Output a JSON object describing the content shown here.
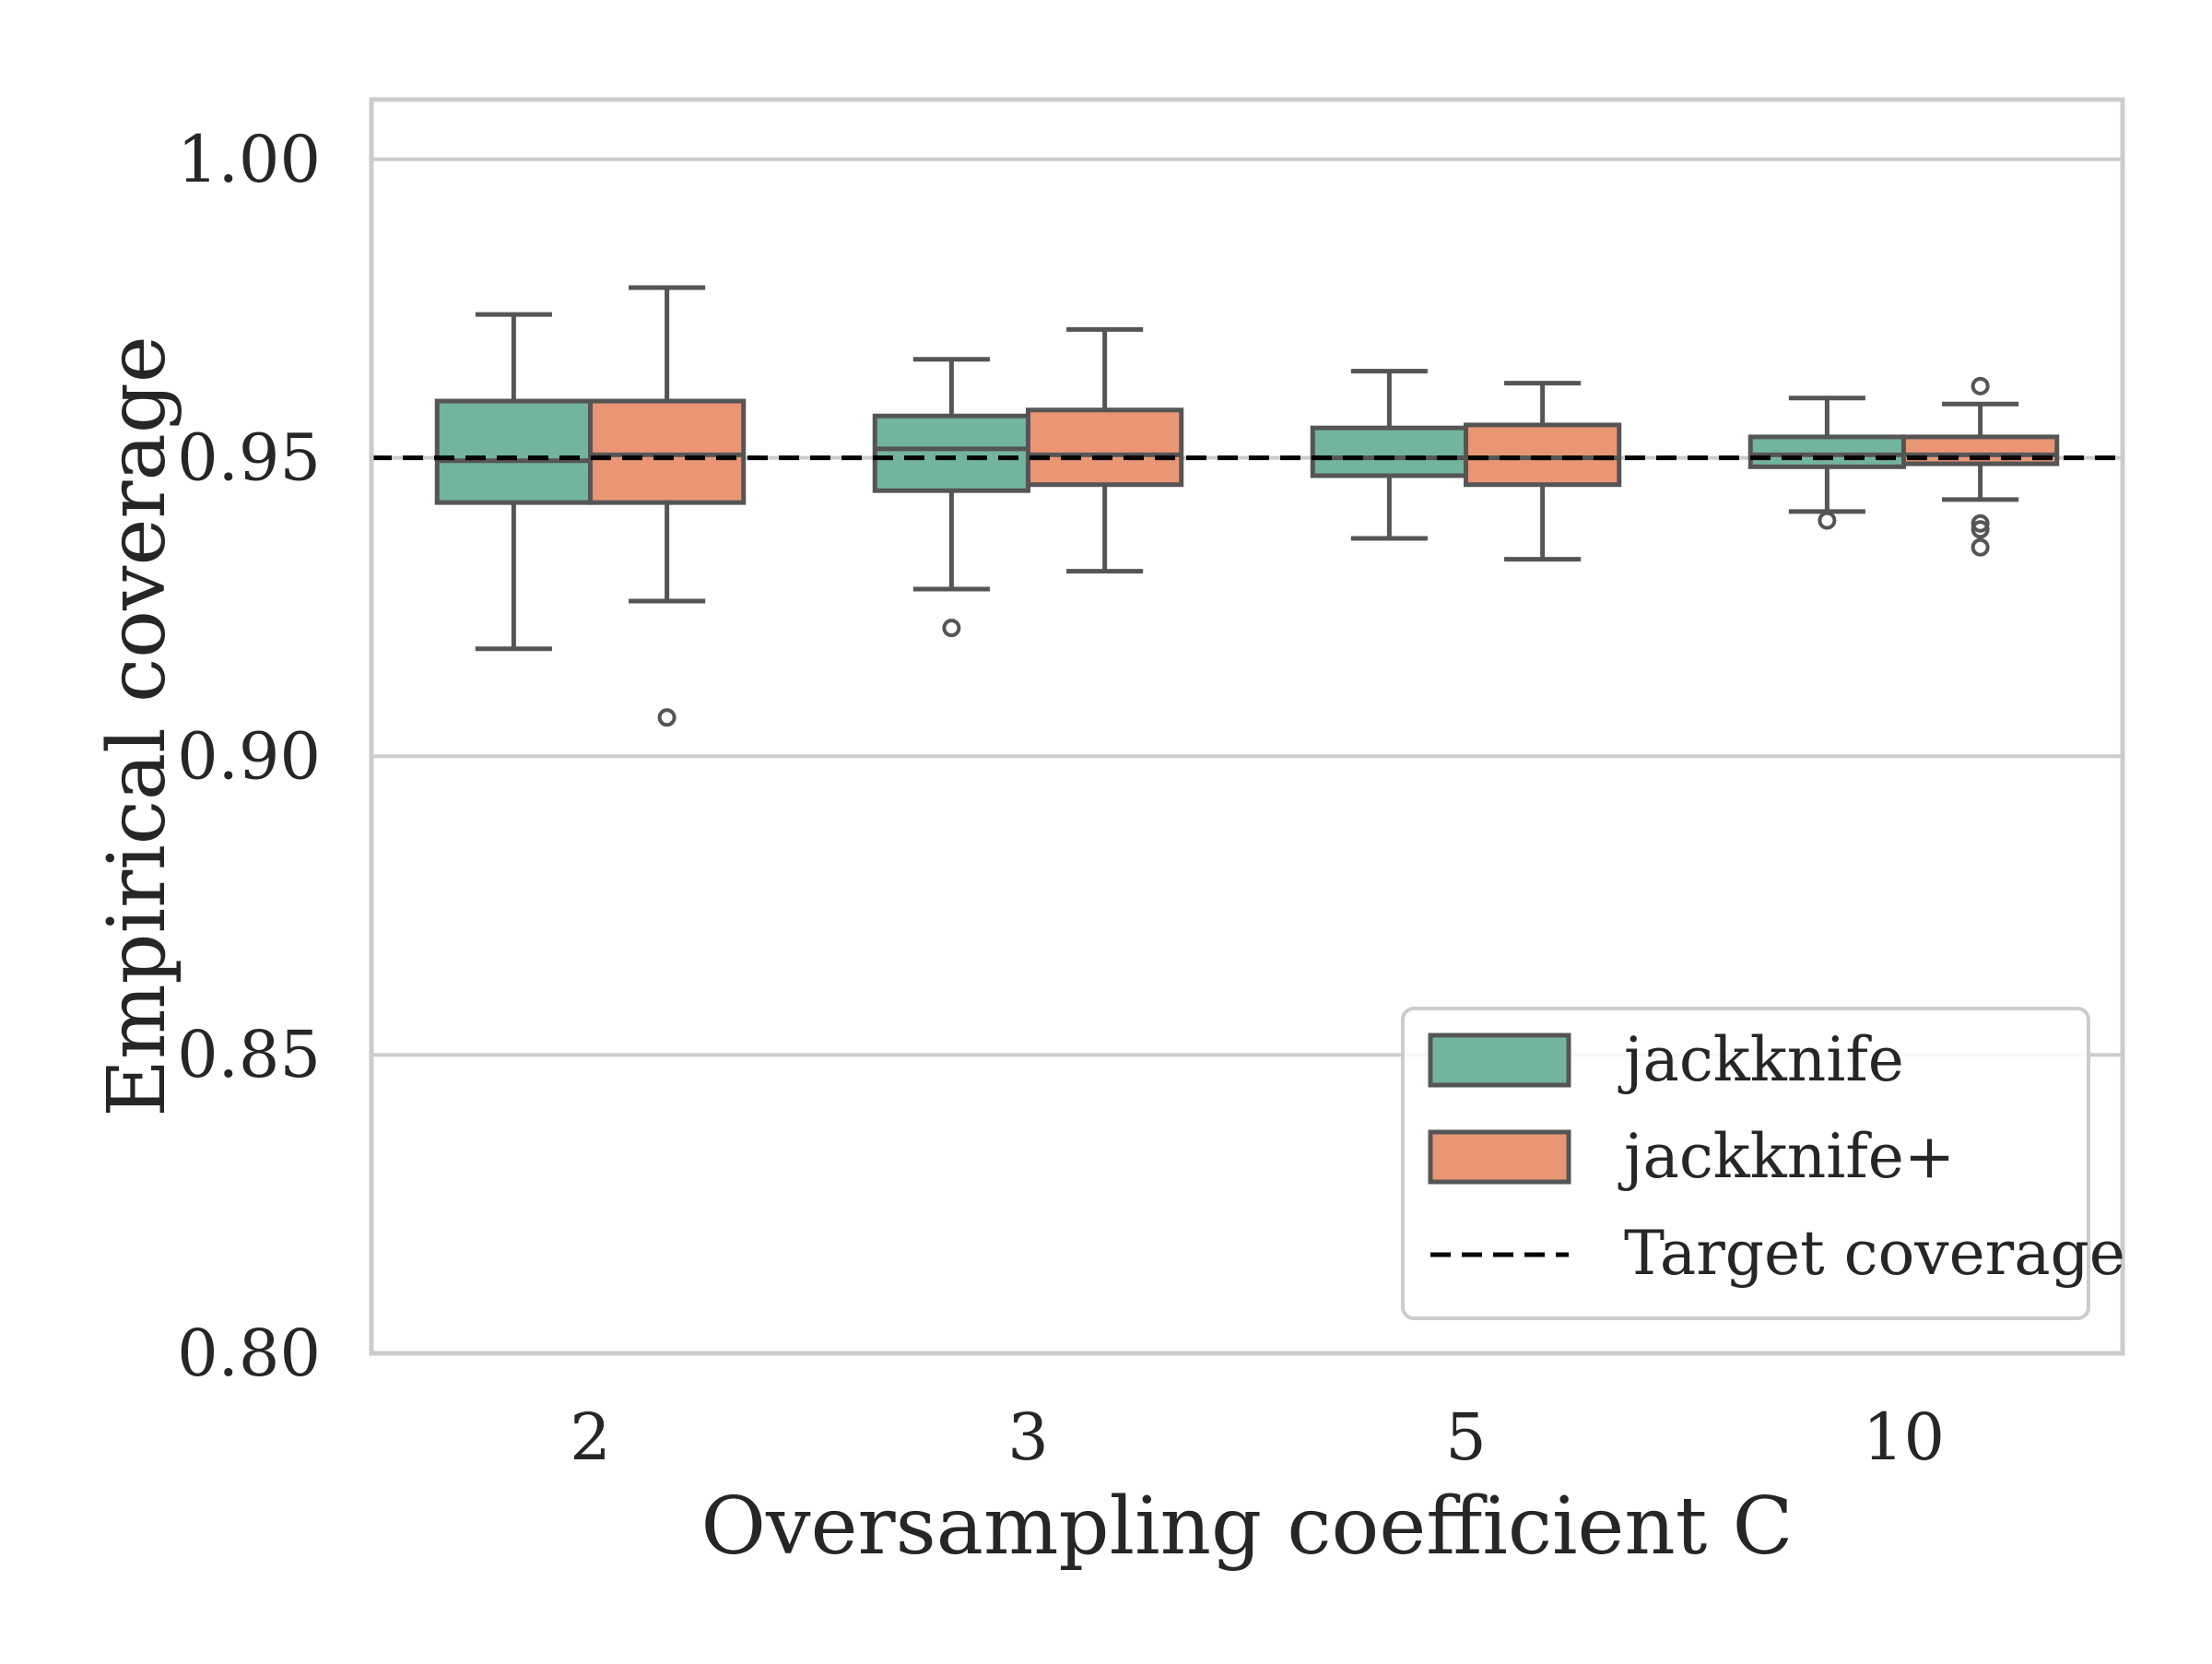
{
  "chart_data": {
    "type": "box",
    "xlabel": "Oversampling coefficient C",
    "ylabel": "Empirical coverage",
    "categories": [
      "2",
      "3",
      "5",
      "10"
    ],
    "ylim": [
      0.8,
      1.01
    ],
    "yticks": [
      "0.80",
      "0.85",
      "0.90",
      "0.95",
      "1.00"
    ],
    "grid": "horizontal",
    "legend_position": "bottom-right",
    "target_coverage": 0.95,
    "series": [
      {
        "name": "jackknife",
        "color": "#72b59c",
        "boxes": [
          {
            "whisker_low": 0.918,
            "q1": 0.9425,
            "median": 0.9495,
            "q3": 0.9595,
            "whisker_high": 0.974,
            "outliers": []
          },
          {
            "whisker_low": 0.928,
            "q1": 0.9445,
            "median": 0.9515,
            "q3": 0.957,
            "whisker_high": 0.9665,
            "outliers": [
              0.9215
            ]
          },
          {
            "whisker_low": 0.9365,
            "q1": 0.947,
            "median": 0.95,
            "q3": 0.955,
            "whisker_high": 0.9645,
            "outliers": []
          },
          {
            "whisker_low": 0.941,
            "q1": 0.9485,
            "median": 0.9505,
            "q3": 0.9535,
            "whisker_high": 0.96,
            "outliers": [
              0.9395
            ]
          }
        ]
      },
      {
        "name": "jackknife+",
        "color": "#e99675",
        "boxes": [
          {
            "whisker_low": 0.926,
            "q1": 0.9425,
            "median": 0.9505,
            "q3": 0.9595,
            "whisker_high": 0.9785,
            "outliers": [
              0.9065
            ]
          },
          {
            "whisker_low": 0.931,
            "q1": 0.9455,
            "median": 0.9505,
            "q3": 0.958,
            "whisker_high": 0.9715,
            "outliers": []
          },
          {
            "whisker_low": 0.933,
            "q1": 0.9455,
            "median": 0.95,
            "q3": 0.9555,
            "whisker_high": 0.9625,
            "outliers": []
          },
          {
            "whisker_low": 0.943,
            "q1": 0.949,
            "median": 0.9505,
            "q3": 0.9535,
            "whisker_high": 0.959,
            "outliers": [
              0.962,
              0.939,
              0.938,
              0.935
            ]
          }
        ]
      }
    ],
    "legend": {
      "jackknife": "jackknife",
      "jackknife_plus": "jackknife+",
      "target": "Target coverage"
    }
  }
}
